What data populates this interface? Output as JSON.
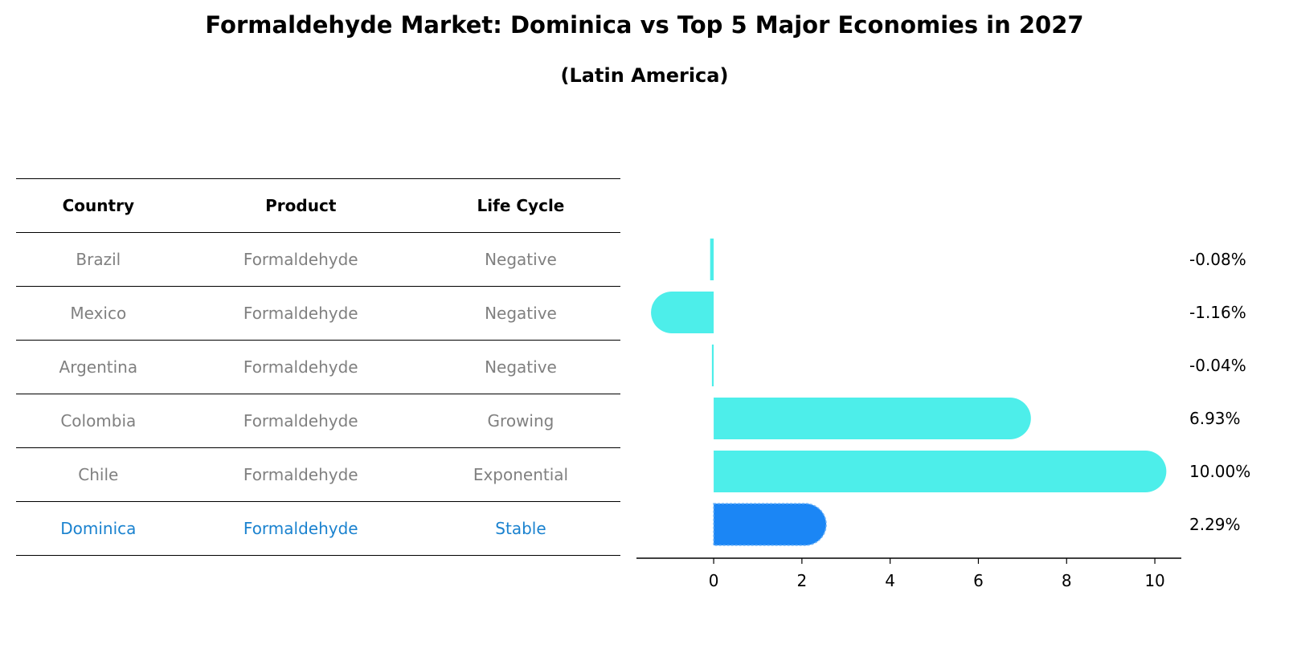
{
  "title": "Formaldehyde Market: Dominica vs Top 5 Major Economies in 2027",
  "subtitle": "(Latin America)",
  "table": {
    "headers": [
      "Country",
      "Product",
      "Life Cycle"
    ],
    "rows": [
      [
        "Brazil",
        "Formaldehyde",
        "Negative"
      ],
      [
        "Mexico",
        "Formaldehyde",
        "Negative"
      ],
      [
        "Argentina",
        "Formaldehyde",
        "Negative"
      ],
      [
        "Colombia",
        "Formaldehyde",
        "Growing"
      ],
      [
        "Chile",
        "Formaldehyde",
        "Exponential"
      ],
      [
        "Dominica",
        "Formaldehyde",
        "Stable"
      ]
    ],
    "highlight_row": 5
  },
  "chart_data": {
    "type": "bar",
    "orientation": "horizontal",
    "title": "Formaldehyde Market: Dominica vs Top 5 Major Economies in 2027",
    "subtitle": "(Latin America)",
    "categories": [
      "Brazil",
      "Mexico",
      "Argentina",
      "Colombia",
      "Chile",
      "Dominica"
    ],
    "values": [
      -0.08,
      -1.16,
      -0.04,
      6.93,
      10.0,
      2.29
    ],
    "value_labels": [
      "-0.08%",
      "-1.16%",
      "-0.04%",
      "6.93%",
      "10.00%",
      "2.29%"
    ],
    "xticks": [
      0,
      2,
      4,
      6,
      8,
      10
    ],
    "xlim": [
      -1.75,
      10.6
    ],
    "xlabel": "",
    "ylabel": "",
    "grid": false,
    "colors": {
      "default": "#4deeea",
      "highlight": "#1b86f5",
      "highlight_text": "#1a82cf",
      "muted_text": "#808080"
    },
    "highlight_index": 5
  }
}
